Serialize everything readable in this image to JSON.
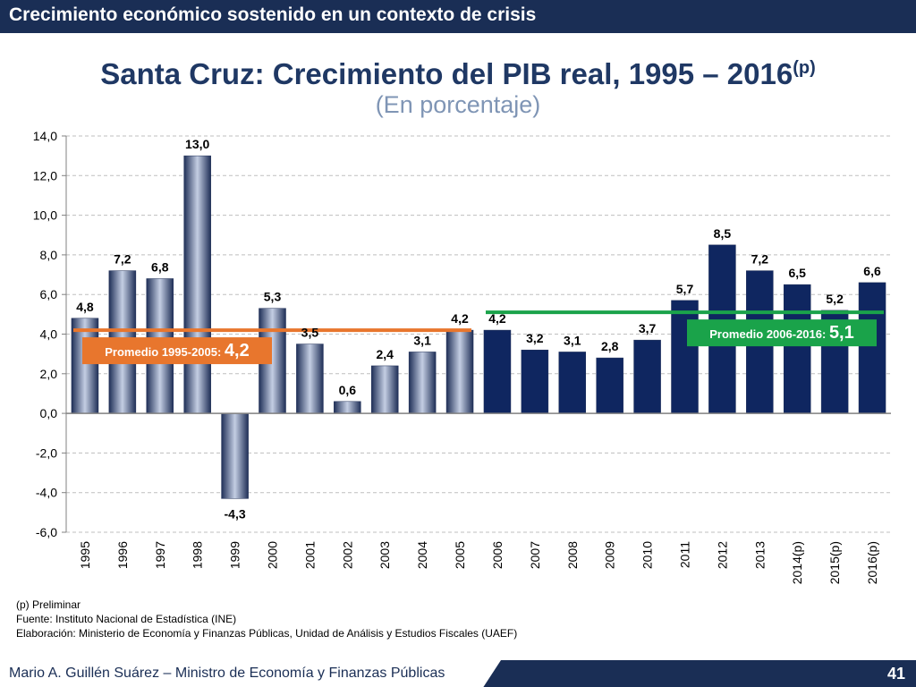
{
  "header": {
    "text": "Crecimiento económico sostenido en un contexto de crisis"
  },
  "title": {
    "main": "Santa Cruz: Crecimiento del PIB real, 1995 – 2016",
    "superscript": "(p)",
    "subtitle": "(En porcentaje)"
  },
  "chart_data": {
    "type": "bar",
    "title": "Santa Cruz: Crecimiento del PIB real, 1995 – 2016(p)",
    "ylabel": "Porcentaje",
    "ylim": [
      -6,
      14
    ],
    "yticks": [
      "14,0",
      "12,0",
      "10,0",
      "8,0",
      "6,0",
      "4,0",
      "2,0",
      "0,0",
      "-2,0",
      "-4,0",
      "-6,0"
    ],
    "ytick_values": [
      14,
      12,
      10,
      8,
      6,
      4,
      2,
      0,
      -2,
      -4,
      -6
    ],
    "categories": [
      "1995",
      "1996",
      "1997",
      "1998",
      "1999",
      "2000",
      "2001",
      "2002",
      "2003",
      "2004",
      "2005",
      "2006",
      "2007",
      "2008",
      "2009",
      "2010",
      "2011",
      "2012",
      "2013",
      "2014(p)",
      "2015(p)",
      "2016(p)"
    ],
    "values": [
      4.8,
      7.2,
      6.8,
      13.0,
      -4.3,
      5.3,
      3.5,
      0.6,
      2.4,
      3.1,
      4.2,
      4.2,
      3.2,
      3.1,
      2.8,
      3.7,
      5.7,
      8.5,
      7.2,
      6.5,
      5.2,
      6.6
    ],
    "labels": [
      "4,8",
      "7,2",
      "6,8",
      "13,0",
      "-4,3",
      "5,3",
      "3,5",
      "0,6",
      "2,4",
      "3,1",
      "4,2",
      "4,2",
      "3,2",
      "3,1",
      "2,8",
      "3,7",
      "5,7",
      "8,5",
      "7,2",
      "6,5",
      "5,2",
      "6,6"
    ],
    "averages": [
      {
        "label": "Promedio 1995-2005: ",
        "value_label": "4,2",
        "value": 4.2,
        "from_index": 0,
        "to_index": 10,
        "color": "#e8762d"
      },
      {
        "label": "Promedio 2006-2016: ",
        "value_label": "5,1",
        "value": 5.1,
        "from_index": 11,
        "to_index": 21,
        "color": "#1aa34a"
      }
    ],
    "colors": {
      "period1_bar": "#3a4f7a",
      "period2_bar": "#0f2660",
      "grid": "#bfbfbf"
    }
  },
  "notes": [
    "(p) Preliminar",
    "Fuente: Instituto Nacional de Estadística (INE)",
    "Elaboración: Ministerio de Economía y Finanzas Públicas, Unidad de Análisis y Estudios Fiscales (UAEF)"
  ],
  "footer": {
    "text": "Mario A. Guillén Suárez – Ministro de Economía y Finanzas Públicas",
    "page": "41"
  }
}
